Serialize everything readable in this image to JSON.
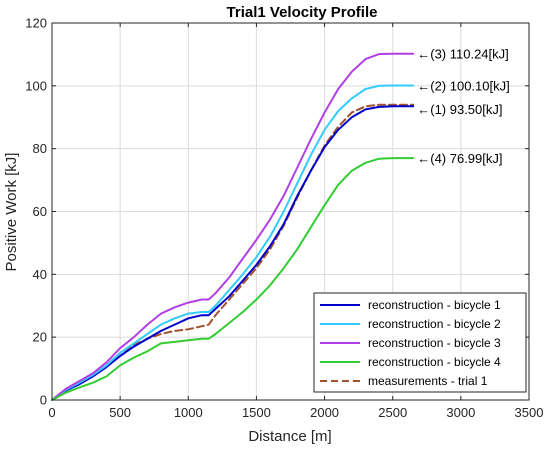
{
  "chart_data": {
    "type": "line",
    "title": "Trial1 Velocity Profile",
    "xlabel": "Distance [m]",
    "ylabel": "Positive Work [kJ]",
    "xlim": [
      0,
      3500
    ],
    "ylim": [
      0,
      120
    ],
    "xticks": [
      0,
      500,
      1000,
      1500,
      2000,
      2500,
      3000,
      3500
    ],
    "yticks": [
      0,
      20,
      40,
      60,
      80,
      100,
      120
    ],
    "xtick_labels": [
      "0",
      "500",
      "1000",
      "1500",
      "2000",
      "2500",
      "3000",
      "3500"
    ],
    "ytick_labels": [
      "0",
      "20",
      "40",
      "60",
      "80",
      "100",
      "120"
    ],
    "grid": true,
    "legend_position": "bottom-right",
    "series": [
      {
        "name": "reconstruction - bicycle 1",
        "color": "#0000cc",
        "style": "solid",
        "x": [
          0,
          100,
          200,
          300,
          400,
          500,
          600,
          700,
          800,
          900,
          1000,
          1100,
          1150,
          1200,
          1300,
          1400,
          1500,
          1600,
          1700,
          1800,
          1900,
          2000,
          2100,
          2200,
          2300,
          2400,
          2500,
          2650
        ],
        "y": [
          0,
          3,
          5,
          7.5,
          10.5,
          14,
          17,
          19.5,
          22,
          24,
          26,
          27,
          27,
          29,
          33,
          38,
          43,
          49,
          56,
          65,
          73,
          80.5,
          86,
          90,
          92.5,
          93.3,
          93.5,
          93.5
        ]
      },
      {
        "name": "reconstruction - bicycle 2",
        "color": "#33ccff",
        "style": "solid",
        "x": [
          0,
          100,
          200,
          300,
          400,
          500,
          600,
          700,
          800,
          900,
          1000,
          1100,
          1150,
          1200,
          1300,
          1400,
          1500,
          1600,
          1700,
          1800,
          1900,
          2000,
          2100,
          2200,
          2300,
          2400,
          2500,
          2650
        ],
        "y": [
          0,
          3.2,
          5.5,
          8,
          11,
          15,
          18,
          21,
          24,
          26,
          27.5,
          28,
          28,
          30,
          35,
          40,
          45.5,
          52,
          60,
          69,
          78,
          86,
          92,
          96,
          99,
          100,
          100.1,
          100.1
        ]
      },
      {
        "name": "reconstruction - bicycle 3",
        "color": "#b23ee6",
        "style": "solid",
        "x": [
          0,
          100,
          200,
          300,
          400,
          500,
          600,
          700,
          800,
          900,
          1000,
          1100,
          1150,
          1200,
          1300,
          1400,
          1500,
          1600,
          1700,
          1800,
          1900,
          2000,
          2100,
          2200,
          2300,
          2400,
          2500,
          2650
        ],
        "y": [
          0,
          3.5,
          6,
          8.5,
          12,
          16.5,
          20,
          24,
          27.5,
          29.5,
          31,
          32,
          32,
          34,
          39,
          45,
          51,
          57.5,
          65,
          74,
          83,
          91.5,
          99,
          104.5,
          108.5,
          110.1,
          110.24,
          110.24
        ]
      },
      {
        "name": "reconstruction - bicycle 4",
        "color": "#33cc33",
        "style": "solid",
        "x": [
          0,
          100,
          200,
          300,
          400,
          500,
          600,
          700,
          800,
          900,
          1000,
          1100,
          1150,
          1200,
          1300,
          1400,
          1500,
          1600,
          1700,
          1800,
          1900,
          2000,
          2100,
          2200,
          2300,
          2400,
          2500,
          2650
        ],
        "y": [
          0,
          2.3,
          4,
          5.5,
          7.5,
          11,
          13.5,
          15.5,
          18,
          18.5,
          19,
          19.5,
          19.5,
          21,
          24.5,
          28,
          32,
          36.5,
          42,
          48,
          55,
          62,
          68.5,
          73,
          75.5,
          76.8,
          76.99,
          76.99
        ]
      },
      {
        "name": "measurements - trial 1",
        "color": "#a0522d",
        "style": "dashed",
        "x": [
          0,
          100,
          200,
          300,
          400,
          500,
          600,
          700,
          800,
          900,
          1000,
          1100,
          1150,
          1200,
          1300,
          1400,
          1500,
          1600,
          1700,
          1800,
          1900,
          2000,
          2100,
          2200,
          2300,
          2400,
          2500,
          2650
        ],
        "y": [
          0,
          3,
          5.3,
          7.8,
          11,
          15,
          17.5,
          19.5,
          21,
          22,
          22.5,
          23.5,
          24,
          27,
          32,
          37,
          42,
          48,
          55.5,
          64.5,
          73,
          81,
          87,
          91.5,
          93.5,
          94,
          94,
          94
        ]
      }
    ],
    "annotations": [
      {
        "text": "←(3) 110.24[kJ]",
        "x": 2680,
        "y": 110.24
      },
      {
        "text": "←(2) 100.10[kJ]",
        "x": 2680,
        "y": 100.1
      },
      {
        "text": "←(1) 93.50[kJ]",
        "x": 2680,
        "y": 92.7
      },
      {
        "text": "←(4) 76.99[kJ]",
        "x": 2680,
        "y": 76.99
      }
    ]
  }
}
